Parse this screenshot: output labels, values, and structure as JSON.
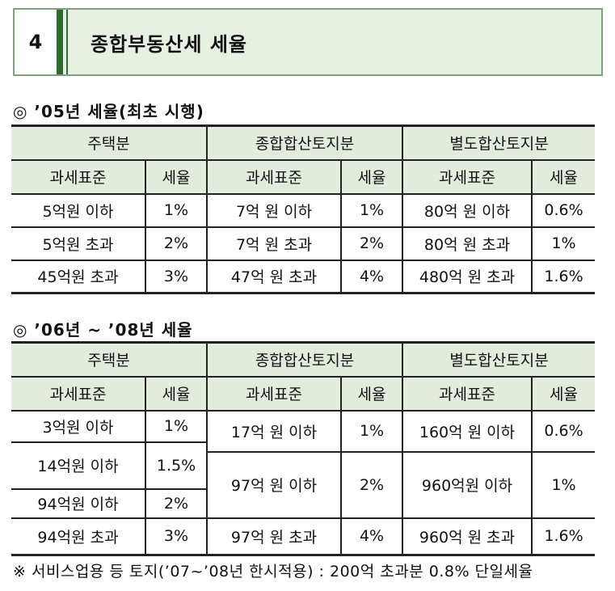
{
  "header": {
    "number": "4",
    "title": "종합부동산세 세율"
  },
  "section1": {
    "title": "◎ ’05년 세율(최초 시행)",
    "groups": [
      "주택분",
      "종합합산토지분",
      "별도합산토지분"
    ],
    "col_base": "과세표준",
    "col_rate": "세율",
    "rows": [
      [
        "5억원 이하",
        "1%",
        "7억 원 이하",
        "1%",
        "80억 원 이하",
        "0.6%"
      ],
      [
        "5억원 초과",
        "2%",
        "7억 원 초과",
        "2%",
        "80억 원 초과",
        "1%"
      ],
      [
        "45억원 초과",
        "3%",
        "47억 원 초과",
        "4%",
        "480억 원 초과",
        "1.6%"
      ]
    ]
  },
  "section2": {
    "title": "◎ ’06년 ~ ’08년 세율",
    "groups": [
      "주택분",
      "종합합산토지분",
      "별도합산토지분"
    ],
    "col_base": "과세표준",
    "col_rate": "세율",
    "housing": [
      [
        "3억원 이하",
        "1%"
      ],
      [
        "14억원 이하",
        "1.5%"
      ],
      [
        "94억원 이하",
        "2%"
      ],
      [
        "94억원 초과",
        "3%"
      ]
    ],
    "land": [
      [
        "17억 원 이하",
        "1%",
        "160억 원 이하",
        "0.6%"
      ],
      [
        "97억 원 이하",
        "2%",
        "960억원 이하",
        "1%"
      ],
      [
        "97억 원 초과",
        "4%",
        "960억 원 초과",
        "1.6%"
      ]
    ]
  },
  "note": "※ 서비스업용 등 토지(’07~’08년 한시적용) : 200억 초과분 0.8% 단일세율"
}
